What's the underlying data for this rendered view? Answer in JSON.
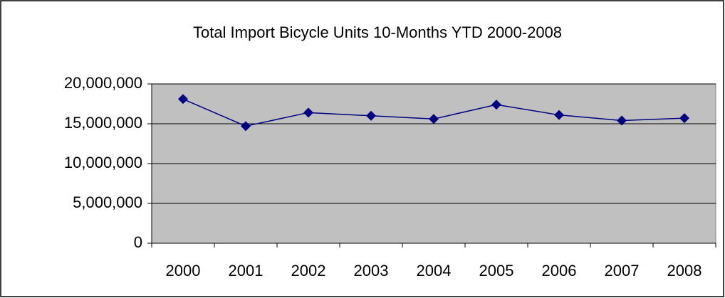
{
  "chart_data": {
    "type": "line",
    "title": "Total Import Bicycle Units 10-Months YTD 2000-2008",
    "categories": [
      "2000",
      "2001",
      "2002",
      "2003",
      "2004",
      "2005",
      "2006",
      "2007",
      "2008"
    ],
    "series": [
      {
        "color": "#000080",
        "values": [
          18100000,
          14700000,
          16400000,
          16000000,
          15600000,
          17400000,
          16100000,
          15400000,
          15700000
        ]
      }
    ],
    "ylim": [
      0,
      20000000
    ],
    "yticks": [
      0,
      {
        "value": 5000000,
        "label": "5,000,000"
      },
      {
        "value": 10000000,
        "label": "10,000,000"
      },
      {
        "value": 15000000,
        "label": "15,000,000"
      },
      {
        "value": 20000000,
        "label": "20,000,000"
      }
    ],
    "grid": true,
    "plot_background": "#c0c0c0"
  }
}
